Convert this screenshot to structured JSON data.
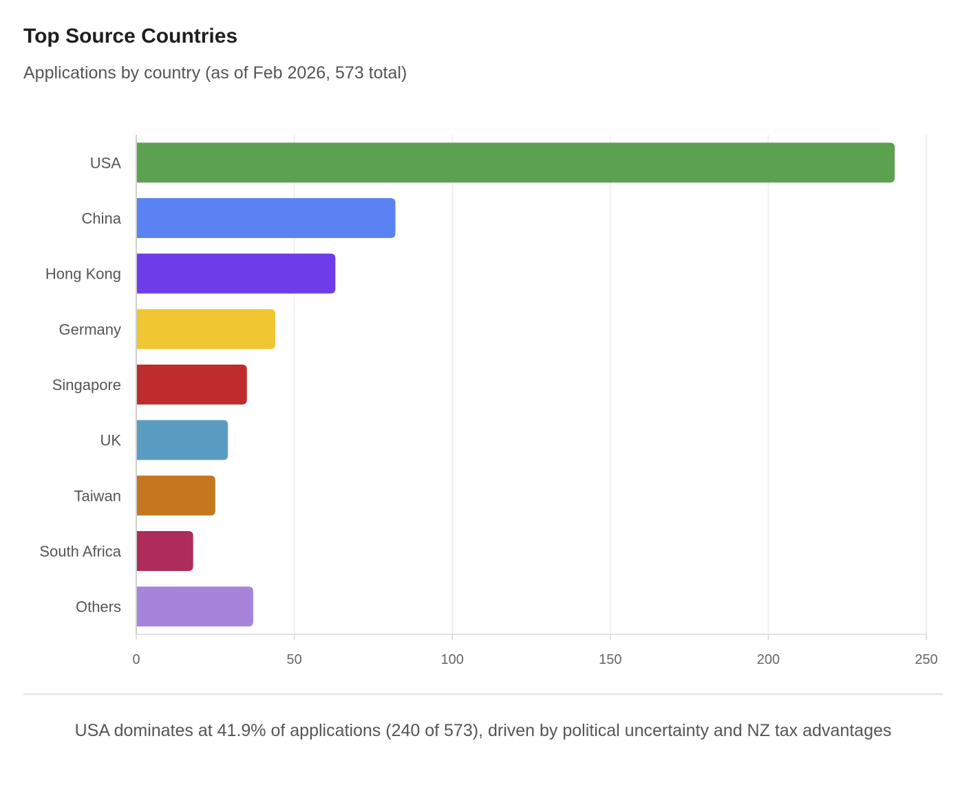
{
  "header": {
    "title": "Top Source Countries",
    "subtitle": "Applications by country (as of Feb 2026, 573 total)"
  },
  "chart_data": {
    "type": "bar",
    "orientation": "horizontal",
    "title": "Top Source Countries",
    "subtitle": "Applications by country (as of Feb 2026, 573 total)",
    "xlabel": "",
    "ylabel": "",
    "xlim": [
      0,
      250
    ],
    "xticks": [
      0,
      50,
      100,
      150,
      200,
      250
    ],
    "grid": true,
    "legend": "none",
    "categories": [
      "USA",
      "China",
      "Hong Kong",
      "Germany",
      "Singapore",
      "UK",
      "Taiwan",
      "South Africa",
      "Others"
    ],
    "values": [
      240,
      82,
      63,
      44,
      35,
      29,
      25,
      18,
      37
    ],
    "colors": [
      "#5ca150",
      "#5b82f2",
      "#6e3ce8",
      "#f0c733",
      "#bf2c2e",
      "#5a9cc2",
      "#c4771f",
      "#ad2c5a",
      "#a684dc"
    ]
  },
  "footer": {
    "caption": "USA dominates at 41.9% of applications (240 of 573), driven by political uncertainty and NZ tax advantages"
  }
}
